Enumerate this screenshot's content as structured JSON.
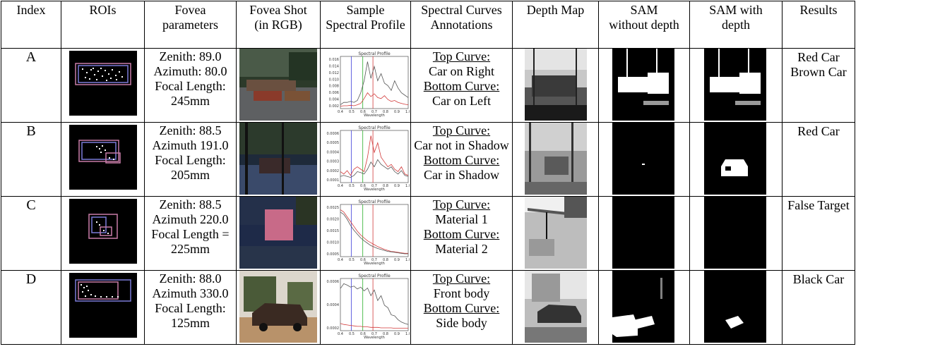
{
  "headers": {
    "index": "Index",
    "rois": "ROIs",
    "fovea_params": [
      "Fovea",
      "parameters"
    ],
    "fovea_shot": [
      "Fovea Shot",
      "(in RGB)"
    ],
    "sample_spectral": [
      "Sample",
      "Spectral Profile"
    ],
    "annotations": [
      "Spectral Curves",
      "Annotations"
    ],
    "depth": "Depth Map",
    "sam_without": [
      "SAM",
      "without depth"
    ],
    "sam_with": [
      "SAM with",
      "depth"
    ],
    "results": "Results"
  },
  "plot_text": {
    "title": "Spectral Profile",
    "xlabel": "Wavelength",
    "xticks": [
      "0.4",
      "0.5",
      "0.6",
      "0.7",
      "0.8",
      "0.9",
      "1.0"
    ]
  },
  "rows": [
    {
      "index": "A",
      "params": [
        "Zenith: 89.0",
        "Azimuth: 80.0",
        "Focal Length:",
        "245mm"
      ],
      "top_label": "Top Curve:",
      "top": "Car on Right",
      "bottom_label": "Bottom Curve:",
      "bottom": "Car on Left",
      "results": [
        "Red Car",
        "Brown Car"
      ],
      "yticks": [
        "0.016",
        "0.014",
        "0.012",
        "0.010",
        "0.008",
        "0.006",
        "0.004",
        "0.002"
      ]
    },
    {
      "index": "B",
      "params": [
        "Zenith: 88.5",
        "Azimuth 191.0",
        "Focal Length:",
        "205mm"
      ],
      "top_label": "Top Curve:",
      "top": "Car not in Shadow",
      "bottom_label": "Bottom Curve:",
      "bottom": "Car in Shadow",
      "results": [
        "Red Car"
      ],
      "yticks": [
        "0.0006",
        "0.0005",
        "0.0004",
        "0.0003",
        "0.0002",
        "0.0001"
      ]
    },
    {
      "index": "C",
      "params": [
        "Zenith: 88.5",
        "Azimuth 220.0",
        "Focal Length =",
        "225mm"
      ],
      "top_label": "Top Curve:",
      "top": "Material 1",
      "bottom_label": "Bottom Curve:",
      "bottom": "Material 2",
      "results": [
        "False Target"
      ],
      "yticks": [
        "0.0025",
        "0.0020",
        "0.0015",
        "0.0010",
        "0.0005"
      ]
    },
    {
      "index": "D",
      "params": [
        "Zenith: 88.0",
        "Azimuth 330.0",
        "Focal Length:",
        "125mm"
      ],
      "top_label": "Top Curve:",
      "top": "Front body",
      "bottom_label": "Bottom Curve:",
      "bottom": "Side body",
      "results": [
        "Black Car"
      ],
      "yticks": [
        "0.0006",
        "0.0004",
        "0.0002"
      ]
    }
  ]
}
